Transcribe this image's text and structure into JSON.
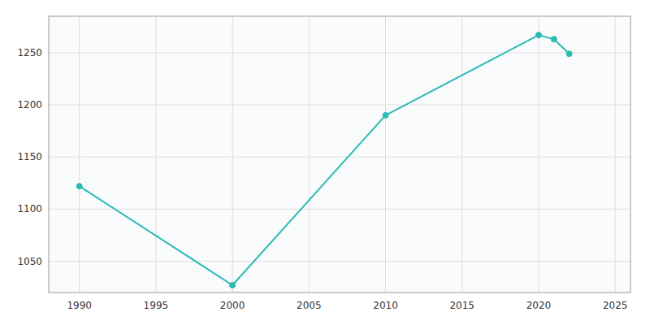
{
  "chart_data": {
    "type": "line",
    "x": [
      1990,
      2000,
      2010,
      2020,
      2021,
      2022
    ],
    "values": [
      1122,
      1027,
      1190,
      1267,
      1263,
      1249
    ],
    "color": "#2abcb4",
    "marker": "circle",
    "xlim": [
      1988,
      2026
    ],
    "ylim": [
      1020,
      1285
    ],
    "xticks": [
      1990,
      1995,
      2000,
      2005,
      2010,
      2015,
      2020,
      2025
    ],
    "yticks": [
      1050,
      1100,
      1150,
      1200,
      1250
    ],
    "grid": true
  }
}
